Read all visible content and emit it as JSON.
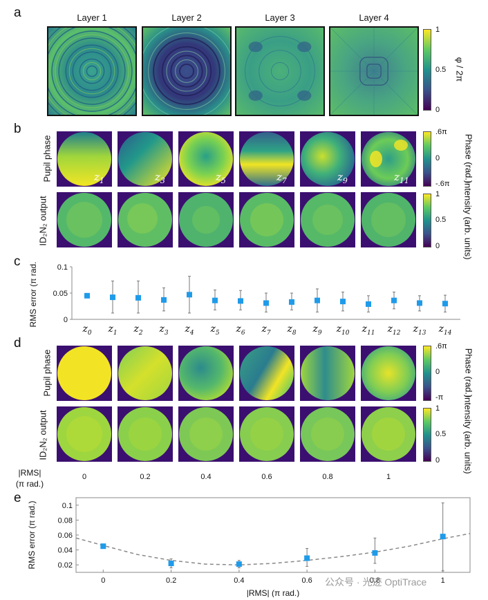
{
  "panels": {
    "a": "a",
    "b": "b",
    "c": "c",
    "d": "d",
    "e": "e"
  },
  "panel_a": {
    "layer_titles": [
      "Layer 1",
      "Layer 2",
      "Layer 3",
      "Layer 4"
    ],
    "colorbar": {
      "ticks": [
        "1",
        "0.5",
        "0"
      ],
      "title": "φ / 2π"
    }
  },
  "panel_b": {
    "row_labels": [
      "Pupil phase",
      "ID₂N₂ output"
    ],
    "zernike_labels": [
      "Z1",
      "Z3",
      "Z5",
      "Z7",
      "Z9",
      "Z11"
    ],
    "phase_colorbar": {
      "ticks": [
        ".6π",
        "0",
        "-.6π"
      ],
      "title": "Phase (rad.)"
    },
    "intensity_colorbar": {
      "ticks": [
        "1",
        "0.5",
        "0"
      ],
      "title": "Intensity (arb. units)"
    }
  },
  "panel_d": {
    "row_labels": [
      "Pupil phase",
      "ID₂N₂ output"
    ],
    "phase_colorbar": {
      "ticks": [
        ".6π",
        "0",
        "-π"
      ],
      "title": "Phase (rad.)"
    },
    "intensity_colorbar": {
      "ticks": [
        "1",
        "0.5",
        "0"
      ],
      "title": "Intensity (arb. units)"
    },
    "rms_label": "|RMS| (π rad.)",
    "rms_values": [
      "0",
      "0.2",
      "0.4",
      "0.6",
      "0.8",
      "1"
    ]
  },
  "chart_data": [
    {
      "panel": "c",
      "type": "scatter",
      "ylabel": "RMS error (π rad.)",
      "categories": [
        "Z0",
        "Z1",
        "Z2",
        "Z3",
        "Z4",
        "Z5",
        "Z6",
        "Z7",
        "Z8",
        "Z9",
        "Z10",
        "Z11",
        "Z12",
        "Z13",
        "Z14"
      ],
      "values": [
        0.045,
        0.042,
        0.041,
        0.037,
        0.047,
        0.036,
        0.035,
        0.031,
        0.033,
        0.036,
        0.034,
        0.029,
        0.036,
        0.031,
        0.03
      ],
      "err_low": [
        0.045,
        0.012,
        0.012,
        0.016,
        0.012,
        0.018,
        0.018,
        0.014,
        0.018,
        0.014,
        0.016,
        0.014,
        0.02,
        0.016,
        0.014
      ],
      "err_high": [
        0.045,
        0.073,
        0.073,
        0.06,
        0.082,
        0.056,
        0.055,
        0.05,
        0.05,
        0.058,
        0.052,
        0.045,
        0.052,
        0.045,
        0.046
      ],
      "ylim": [
        0,
        0.1
      ],
      "yticks": [
        "0",
        "0.05",
        "0.1"
      ],
      "marker_color": "#1f9bea"
    },
    {
      "panel": "e",
      "type": "scatter",
      "xlabel": "|RMS| (π rad.)",
      "ylabel": "RMS error (π rad.)",
      "x": [
        0,
        0.2,
        0.4,
        0.6,
        0.8,
        1.0
      ],
      "values": [
        0.045,
        0.022,
        0.021,
        0.029,
        0.036,
        0.058
      ],
      "err_low": [
        0.045,
        0.016,
        0.016,
        0.018,
        0.022,
        0.012
      ],
      "err_high": [
        0.045,
        0.028,
        0.026,
        0.042,
        0.056,
        0.103
      ],
      "fit_curve": [
        [
          -0.08,
          0.056
        ],
        [
          0,
          0.046
        ],
        [
          0.1,
          0.034
        ],
        [
          0.2,
          0.026
        ],
        [
          0.3,
          0.021
        ],
        [
          0.4,
          0.02
        ],
        [
          0.5,
          0.022
        ],
        [
          0.6,
          0.026
        ],
        [
          0.7,
          0.031
        ],
        [
          0.8,
          0.037
        ],
        [
          0.9,
          0.045
        ],
        [
          1.0,
          0.055
        ],
        [
          1.08,
          0.062
        ]
      ],
      "xlim": [
        -0.08,
        1.08
      ],
      "ylim": [
        0.01,
        0.11
      ],
      "xticks": [
        "0",
        "0.2",
        "0.4",
        "0.6",
        "0.8",
        "1"
      ],
      "yticks": [
        "0.02",
        "0.04",
        "0.06",
        "0.08",
        "0.1"
      ],
      "marker_color": "#1f9bea"
    }
  ],
  "watermark": "公众号 · 光迹 OptiTrace"
}
